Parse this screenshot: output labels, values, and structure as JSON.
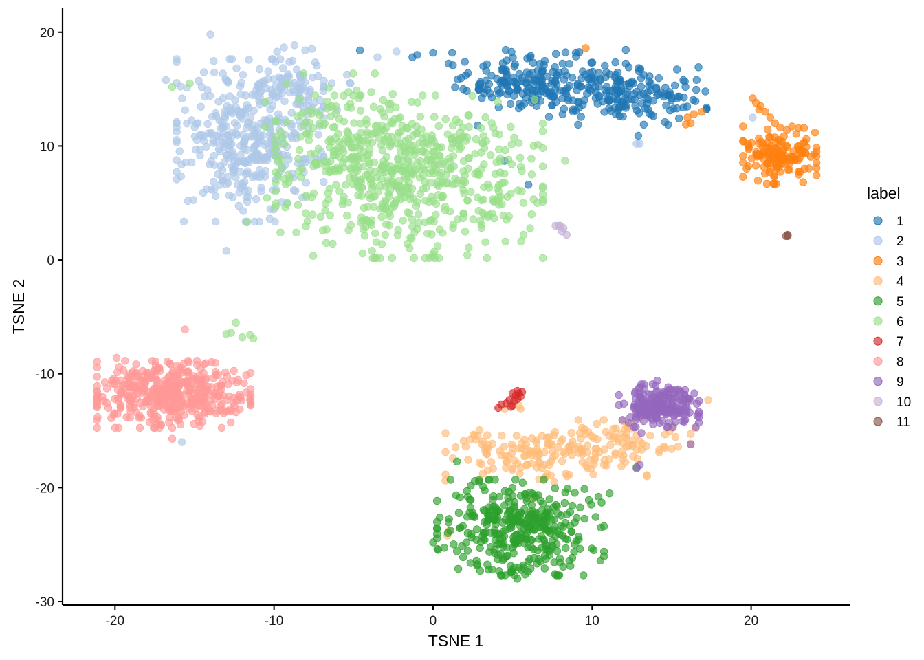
{
  "chart_data": {
    "type": "scatter",
    "title": "",
    "xlabel": "TSNE 1",
    "ylabel": "TSNE 2",
    "xlim": [
      -23.3,
      26.2
    ],
    "ylim": [
      -30.3,
      22.1
    ],
    "xticks": [
      -20,
      -10,
      0,
      10,
      20
    ],
    "yticks": [
      -30,
      -20,
      -10,
      0,
      10,
      20
    ],
    "xtick_labels": [
      "-20",
      "-10",
      "0",
      "10",
      "20"
    ],
    "ytick_labels": [
      "-30",
      "-20",
      "-10",
      "0",
      "10",
      "20"
    ],
    "grid": false,
    "legend": {
      "title": "label",
      "position": "right"
    },
    "point_alpha": 0.65,
    "series": [
      {
        "name": "1",
        "color": "#1f77b4",
        "clusters": [
          {
            "center": [
              7.5,
              15.5
            ],
            "spread": [
              2.2,
              1.4
            ],
            "n": 180
          },
          {
            "center": [
              13.0,
              14.4
            ],
            "spread": [
              2.0,
              1.2
            ],
            "n": 140
          },
          {
            "center": [
              3.5,
              15.5
            ],
            "spread": [
              1.2,
              1.0
            ],
            "n": 35
          }
        ],
        "points": [
          [
            -4.6,
            18.4
          ],
          [
            -1.0,
            18.0
          ],
          [
            0.0,
            18.2
          ],
          [
            1.2,
            18.2
          ],
          [
            -1.3,
            17.8
          ],
          [
            4.5,
            8.7
          ],
          [
            6.0,
            6.6
          ],
          [
            2.8,
            11.8
          ],
          [
            12.9,
            10.9
          ],
          [
            2.0,
            17.4
          ],
          [
            1.9,
            15.0
          ]
        ]
      },
      {
        "name": "2",
        "color": "#aec7e8",
        "clusters": [
          {
            "center": [
              -11.5,
              10.5
            ],
            "spread": [
              2.2,
              3.4
            ],
            "n": 380
          },
          {
            "center": [
              -9.0,
              15.5
            ],
            "spread": [
              1.8,
              1.6
            ],
            "n": 80
          }
        ],
        "points": [
          [
            -14.0,
            19.8
          ],
          [
            -16.8,
            15.8
          ],
          [
            -13.0,
            0.8
          ],
          [
            13.0,
            10.2
          ],
          [
            12.8,
            10.2
          ],
          [
            -2.3,
            18.3
          ],
          [
            -3.5,
            17.8
          ],
          [
            -5.2,
            15.5
          ],
          [
            -15.8,
            -16.0
          ],
          [
            20.1,
            12.5
          ]
        ]
      },
      {
        "name": "3",
        "color": "#ff7f0e",
        "clusters": [
          {
            "center": [
              21.8,
              9.2
            ],
            "spread": [
              1.1,
              1.2
            ],
            "n": 140
          }
        ],
        "points": [
          [
            20.1,
            14.2
          ],
          [
            20.3,
            13.8
          ],
          [
            20.6,
            13.5
          ],
          [
            20.9,
            13.0
          ],
          [
            21.2,
            12.5
          ],
          [
            21.5,
            12.0
          ],
          [
            20.5,
            13.2
          ],
          [
            16.9,
            13.0
          ],
          [
            16.4,
            12.8
          ],
          [
            16.0,
            12.5
          ],
          [
            16.2,
            12.0
          ],
          [
            15.9,
            11.9
          ],
          [
            19.5,
            10.4
          ],
          [
            19.8,
            10.2
          ],
          [
            9.6,
            18.6
          ]
        ]
      },
      {
        "name": "4",
        "color": "#ffbb78",
        "clusters": [
          {
            "center": [
              7.5,
              -17.0
            ],
            "spread": [
              3.2,
              1.2
            ],
            "n": 170
          },
          {
            "center": [
              12.0,
              -15.5
            ],
            "spread": [
              2.0,
              1.0
            ],
            "n": 40
          }
        ],
        "points": [
          [
            4.5,
            -13.1
          ],
          [
            5.5,
            -13.1
          ],
          [
            5.4,
            -12.8
          ],
          [
            17.3,
            -12.3
          ],
          [
            16.5,
            -14.8
          ],
          [
            15.4,
            -16.4
          ],
          [
            15.0,
            -16.6
          ],
          [
            1.0,
            -23.8
          ],
          [
            0.9,
            -24.2
          ],
          [
            6.2,
            -21.0
          ],
          [
            10.3,
            -14.4
          ],
          [
            11.5,
            -14.8
          ]
        ]
      },
      {
        "name": "5",
        "color": "#2ca02c",
        "clusters": [
          {
            "center": [
              5.5,
              -23.5
            ],
            "spread": [
              2.5,
              2.0
            ],
            "n": 370
          }
        ],
        "points": [
          [
            1.5,
            -17.7
          ],
          [
            0.0,
            -24.8
          ],
          [
            5.3,
            -28.0
          ],
          [
            3.5,
            -27.2
          ],
          [
            10.4,
            -20.8
          ],
          [
            11.1,
            -20.5
          ],
          [
            9.8,
            -21.1
          ],
          [
            12.8,
            -18.2
          ]
        ]
      },
      {
        "name": "6",
        "color": "#98df8a",
        "clusters": [
          {
            "center": [
              -1.5,
              7.3
            ],
            "spread": [
              4.0,
              3.4
            ],
            "n": 560
          },
          {
            "center": [
              -5.5,
              10.5
            ],
            "spread": [
              2.4,
              2.8
            ],
            "n": 120
          }
        ],
        "points": [
          [
            -16.4,
            15.2
          ],
          [
            -15.3,
            15.5
          ],
          [
            -11.7,
            3.3
          ],
          [
            -9.6,
            2.4
          ],
          [
            -8.6,
            2.4
          ],
          [
            8.3,
            8.7
          ],
          [
            6.6,
            10.1
          ],
          [
            6.2,
            7.5
          ],
          [
            -12.7,
            -6.4
          ],
          [
            -12.4,
            -5.5
          ],
          [
            -12.0,
            -6.8
          ],
          [
            -11.3,
            -6.9
          ],
          [
            -11.5,
            -6.6
          ],
          [
            -13.0,
            -6.5
          ]
        ]
      },
      {
        "name": "7",
        "color": "#d62728",
        "points": [
          [
            4.3,
            -12.7
          ],
          [
            4.6,
            -12.6
          ],
          [
            4.8,
            -12.3
          ],
          [
            5.0,
            -12.8
          ],
          [
            5.1,
            -12.4
          ],
          [
            5.2,
            -11.9
          ],
          [
            5.3,
            -11.5
          ],
          [
            5.4,
            -11.7
          ],
          [
            5.5,
            -12.0
          ],
          [
            5.3,
            -12.2
          ],
          [
            4.1,
            -13.0
          ],
          [
            4.9,
            -12.9
          ],
          [
            5.6,
            -11.6
          ],
          [
            5.0,
            -11.7
          ]
        ]
      },
      {
        "name": "8",
        "color": "#ff9896",
        "clusters": [
          {
            "center": [
              -16.3,
              -11.8
            ],
            "spread": [
              2.3,
              1.4
            ],
            "n": 440
          }
        ],
        "points": [
          [
            -21.1,
            -13.8
          ],
          [
            -20.8,
            -12.0
          ],
          [
            -19.9,
            -8.6
          ],
          [
            -12.5,
            -12.1
          ],
          [
            -12.2,
            -12.0
          ],
          [
            -15.6,
            -6.1
          ],
          [
            -16.4,
            -15.7
          ]
        ]
      },
      {
        "name": "9",
        "color": "#9467bd",
        "clusters": [
          {
            "center": [
              14.2,
              -12.8
            ],
            "spread": [
              1.2,
              0.9
            ],
            "n": 200
          }
        ],
        "points": [
          [
            12.3,
            -14.3
          ],
          [
            13.1,
            -15.2
          ],
          [
            16.2,
            -16.2
          ],
          [
            15.8,
            -14.2
          ],
          [
            16.7,
            -13.5
          ],
          [
            13.0,
            -18.0
          ],
          [
            12.8,
            -18.3
          ],
          [
            14.1,
            -10.6
          ]
        ]
      },
      {
        "name": "10",
        "color": "#c5b0d5",
        "points": [
          [
            7.9,
            3.0
          ],
          [
            8.2,
            2.8
          ],
          [
            8.4,
            2.2
          ],
          [
            8.1,
            2.5
          ],
          [
            8.0,
            3.0
          ],
          [
            7.7,
            3.0
          ]
        ]
      },
      {
        "name": "11",
        "color": "#8c564b",
        "points": [
          [
            22.3,
            2.1
          ],
          [
            22.2,
            2.1
          ],
          [
            22.3,
            2.2
          ]
        ]
      }
    ]
  }
}
